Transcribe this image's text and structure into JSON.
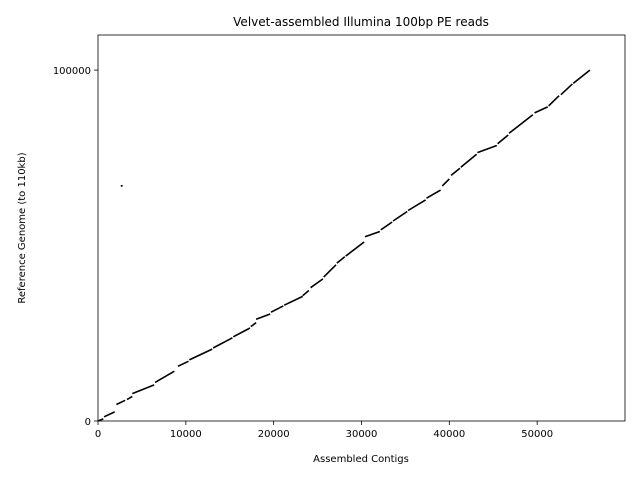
{
  "chart_data": {
    "type": "line",
    "title": "Velvet-assembled Illumina 100bp PE reads",
    "xlabel": "Assembled Contigs",
    "ylabel": "Reference Genome (to 110kb)",
    "xlim": [
      0,
      60000
    ],
    "ylim": [
      0,
      110000
    ],
    "xticks": [
      0,
      10000,
      20000,
      30000,
      40000,
      50000
    ],
    "yticks": [
      0,
      100000
    ],
    "xtick_labels": [
      "0",
      "10000",
      "20000",
      "30000",
      "40000",
      "50000"
    ],
    "ytick_labels": [
      "0",
      "100000"
    ],
    "grid": false,
    "legend": "none",
    "colors": {
      "series": "#000000",
      "axes": "#000000",
      "background": "#ffffff"
    },
    "series": [
      {
        "values": [
          {
            "x": [
              0,
              600
            ],
            "y": [
              0,
              600
            ]
          },
          {
            "x": [
              700,
              1900
            ],
            "y": [
              1200,
              2600
            ]
          },
          {
            "x": [
              2100,
              3100
            ],
            "y": [
              4700,
              5900
            ]
          },
          {
            "x": [
              3300,
              3900
            ],
            "y": [
              6100,
              7000
            ]
          },
          {
            "x": [
              3900,
              6400
            ],
            "y": [
              7800,
              10300
            ]
          },
          {
            "x": [
              6500,
              8700
            ],
            "y": [
              11000,
              14200
            ]
          },
          {
            "x": [
              9100,
              10300
            ],
            "y": [
              15600,
              17000
            ]
          },
          {
            "x": [
              10400,
              13000
            ],
            "y": [
              17400,
              20500
            ]
          },
          {
            "x": [
              13100,
              15300
            ],
            "y": [
              20800,
              23700
            ]
          },
          {
            "x": [
              15400,
              17300
            ],
            "y": [
              24000,
              26500
            ]
          },
          {
            "x": [
              17400,
              18000
            ],
            "y": [
              26900,
              28000
            ]
          },
          {
            "x": [
              18000,
              19600
            ],
            "y": [
              29000,
              30500
            ]
          },
          {
            "x": [
              19700,
              21100
            ],
            "y": [
              31000,
              32800
            ]
          },
          {
            "x": [
              21200,
              23300
            ],
            "y": [
              33000,
              35500
            ]
          },
          {
            "x": [
              23300,
              24000
            ],
            "y": [
              35700,
              37200
            ]
          },
          {
            "x": [
              24200,
              25600
            ],
            "y": [
              38000,
              40500
            ]
          },
          {
            "x": [
              25700,
              27100
            ],
            "y": [
              41000,
              44500
            ]
          },
          {
            "x": [
              27200,
              28100
            ],
            "y": [
              45000,
              46800
            ]
          },
          {
            "x": [
              28200,
              30300
            ],
            "y": [
              47000,
              51000
            ]
          },
          {
            "x": [
              30400,
              32100
            ],
            "y": [
              52500,
              54000
            ]
          },
          {
            "x": [
              32200,
              33500
            ],
            "y": [
              54500,
              56700
            ]
          },
          {
            "x": [
              33600,
              35200
            ],
            "y": [
              57000,
              59700
            ]
          },
          {
            "x": [
              35300,
              37300
            ],
            "y": [
              60000,
              63000
            ]
          },
          {
            "x": [
              37400,
              39000
            ],
            "y": [
              63500,
              65800
            ]
          },
          {
            "x": [
              39200,
              40000
            ],
            "y": [
              67000,
              69000
            ]
          },
          {
            "x": [
              40200,
              41200
            ],
            "y": [
              70000,
              72000
            ]
          },
          {
            "x": [
              41300,
              43100
            ],
            "y": [
              72300,
              76000
            ]
          },
          {
            "x": [
              43200,
              45400
            ],
            "y": [
              76500,
              78500
            ]
          },
          {
            "x": [
              45500,
              46700
            ],
            "y": [
              79000,
              81500
            ]
          },
          {
            "x": [
              46800,
              49500
            ],
            "y": [
              82000,
              87300
            ]
          },
          {
            "x": [
              49700,
              51200
            ],
            "y": [
              87800,
              89500
            ]
          },
          {
            "x": [
              51300,
              52500
            ],
            "y": [
              89800,
              92700
            ]
          },
          {
            "x": [
              52700,
              54000
            ],
            "y": [
              93000,
              96000
            ]
          },
          {
            "x": [
              54100,
              56000
            ],
            "y": [
              96200,
              100000
            ]
          },
          {
            "x": [
              2600,
              2800
            ],
            "y": [
              66900,
              67100
            ]
          }
        ]
      }
    ]
  }
}
